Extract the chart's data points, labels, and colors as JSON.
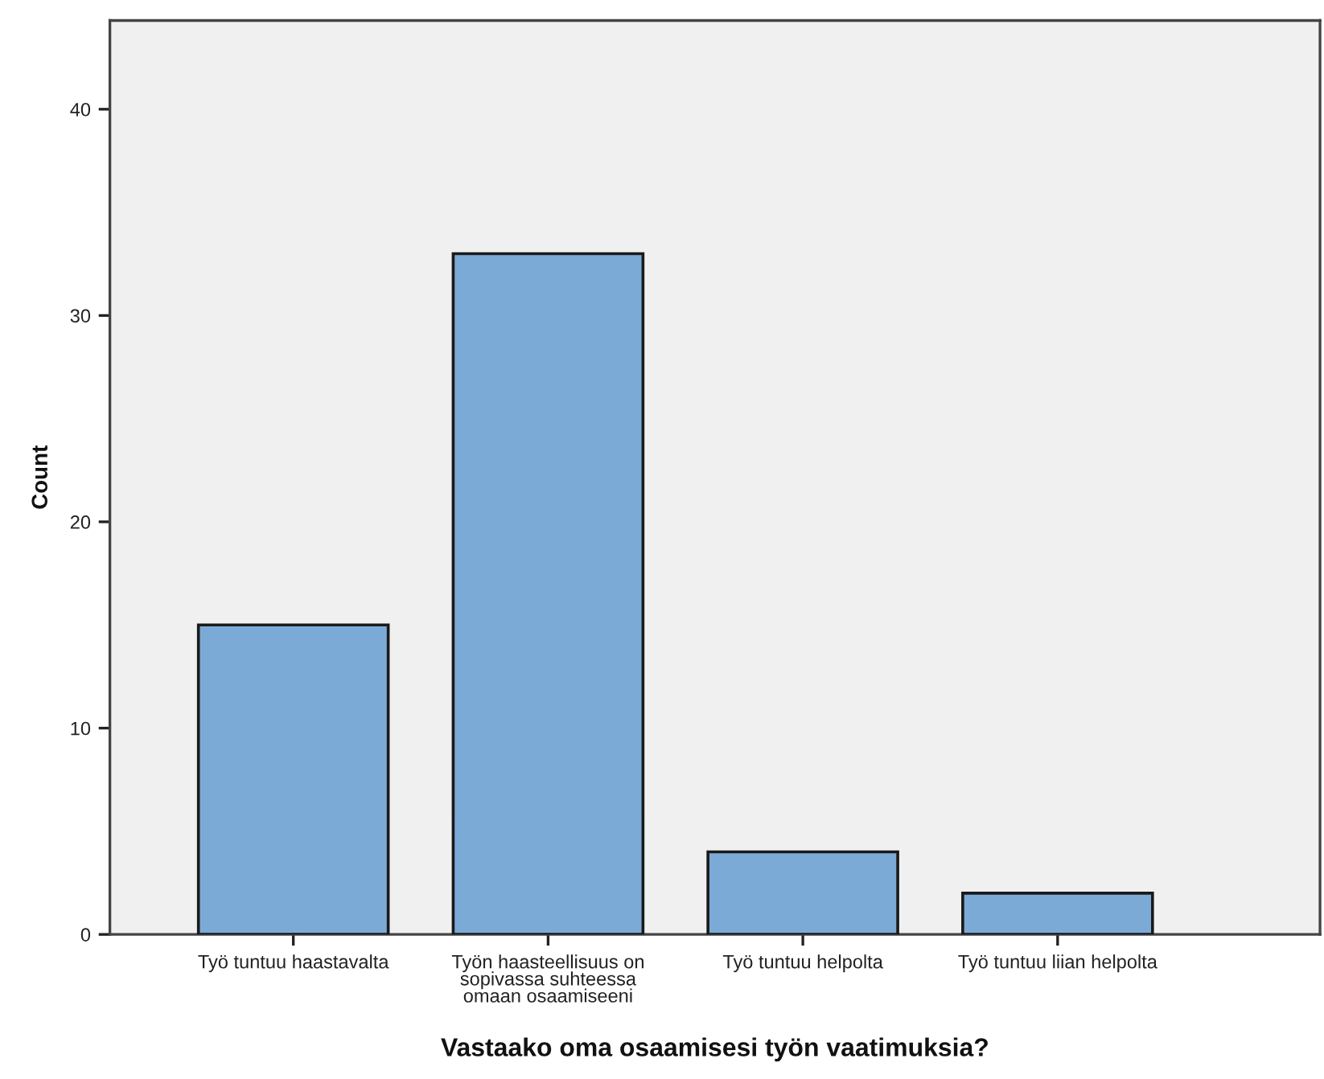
{
  "chart_data": {
    "type": "bar",
    "xlabel": "Vastaako oma osaamisesi työn vaatimuksia?",
    "ylabel": "Count",
    "categories": [
      "Työ tuntuu haastavalta",
      "Työn haasteellisuus on\nsopivassa suhteessa\nomaan osaamiseeni",
      "Työ tuntuu helpolta",
      "Työ tuntuu liian helpolta"
    ],
    "values": [
      15,
      33,
      4,
      2
    ],
    "color": "#7baad7",
    "ylim": [
      0,
      44.3
    ],
    "yticks": [
      0,
      10,
      20,
      30,
      40
    ],
    "grid": false,
    "legend": false
  }
}
